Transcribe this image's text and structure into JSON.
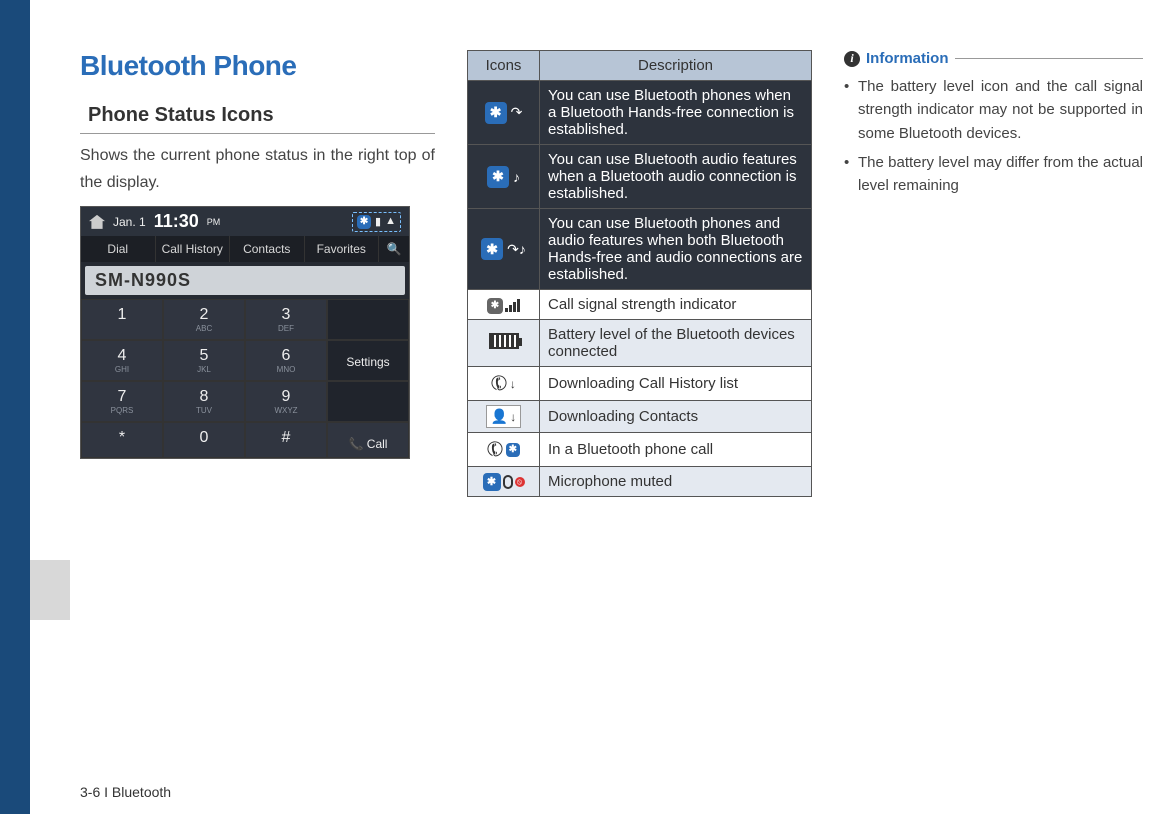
{
  "page": {
    "title": "Bluetooth Phone",
    "subtitle": "Phone Status Icons",
    "intro": "Shows the current phone status in the right top of the display.",
    "footer": "3-6 I Bluetooth"
  },
  "phone_mock": {
    "date": "Jan. 1",
    "time": "11:30",
    "ampm": "PM",
    "tabs": [
      "Dial",
      "Call History",
      "Contacts",
      "Favorites"
    ],
    "device": "SM-N990S",
    "keys_row1": [
      {
        "n": "1",
        "s": ""
      },
      {
        "n": "2",
        "s": "ABC"
      },
      {
        "n": "3",
        "s": "DEF"
      }
    ],
    "keys_row2": [
      {
        "n": "4",
        "s": "GHI"
      },
      {
        "n": "5",
        "s": "JKL"
      },
      {
        "n": "6",
        "s": "MNO"
      }
    ],
    "keys_row3": [
      {
        "n": "7",
        "s": "PQRS"
      },
      {
        "n": "8",
        "s": "TUV"
      },
      {
        "n": "9",
        "s": "WXYZ"
      }
    ],
    "keys_row4": [
      {
        "n": "*",
        "s": ""
      },
      {
        "n": "0",
        "s": ""
      },
      {
        "n": "#",
        "s": ""
      }
    ],
    "side_settings": "Settings",
    "side_call": "Call"
  },
  "icons_table": {
    "headers": [
      "Icons",
      "Description"
    ],
    "rows": [
      {
        "icon": "bt-hf",
        "dark": true,
        "desc": "You can use Bluetooth phones when a Bluetooth Hands-free connection is established."
      },
      {
        "icon": "bt-audio",
        "dark": true,
        "desc": "You can use Bluetooth audio features when a Bluetooth audio connection is established."
      },
      {
        "icon": "bt-both",
        "dark": true,
        "desc": "You can use Bluetooth phones and audio features when both Bluetooth Hands-free and audio connections are established."
      },
      {
        "icon": "signal",
        "dark": false,
        "desc": "Call signal strength indicator"
      },
      {
        "icon": "battery",
        "dark": false,
        "zebra": true,
        "desc": "Battery level of the Bluetooth devices connected"
      },
      {
        "icon": "dl-history",
        "dark": false,
        "desc": "Downloading Call History list"
      },
      {
        "icon": "dl-contacts",
        "dark": false,
        "zebra": true,
        "desc": "Downloading Contacts"
      },
      {
        "icon": "in-call",
        "dark": false,
        "desc": "In a Bluetooth phone call"
      },
      {
        "icon": "mic-mute",
        "dark": false,
        "zebra": true,
        "desc": "Microphone muted"
      }
    ]
  },
  "info": {
    "heading": "Information",
    "items": [
      "The battery level icon and the call signal strength indicator may not be supported in some Bluetooth devices.",
      "The battery level may differ from the actual level remaining"
    ]
  },
  "colors": {
    "sidebar": "#1a4a7a",
    "accent": "#2a6db8",
    "table_header_bg": "#b7c5d6",
    "dark_row_bg": "#2d333d",
    "zebra_bg": "#e4e9f0"
  }
}
